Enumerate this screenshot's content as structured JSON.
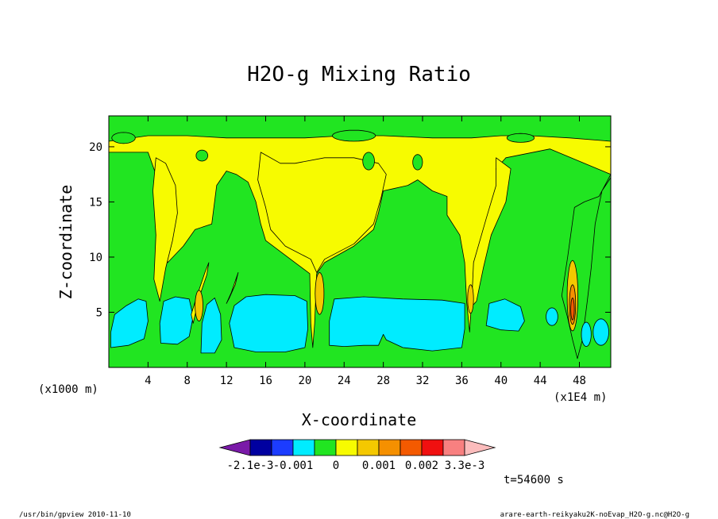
{
  "chart_data": {
    "type": "heatmap",
    "title": "H2O-g Mixing Ratio",
    "xlabel": "X-coordinate",
    "ylabel": "Z-coordinate",
    "x_unit_label": "(x1000 m)",
    "x_scale_label": "(x1E4 m)",
    "xlim": [
      0,
      51.2
    ],
    "ylim": [
      0,
      22.8
    ],
    "xticks": [
      4,
      8,
      12,
      16,
      20,
      24,
      28,
      32,
      36,
      40,
      44,
      48
    ],
    "yticks": [
      5,
      10,
      15,
      20
    ],
    "grid": false,
    "legend": "bottom",
    "levels": [
      -0.0021,
      -0.001,
      0,
      0.001,
      0.002,
      0.0033
    ],
    "colorbar_labels": [
      "-2.1e-3",
      "-0.001",
      "0",
      "0.001",
      "0.002",
      "3.3e-3"
    ],
    "colorbar_colors": [
      "#7a1aa8",
      "#0000a0",
      "#1c3cff",
      "#00ecff",
      "#21e521",
      "#f7fb00",
      "#f4c800",
      "#f59000",
      "#f45a00",
      "#f01010",
      "#f88080",
      "#fbbcbc"
    ],
    "field_colors": {
      "dry": "#00ecff",
      "moderate": "#21e521",
      "moist": "#f7fb00",
      "wet": "#f4c800",
      "peak": "#f59000",
      "max": "#f45a00"
    },
    "time_label": "t=54600 s"
  },
  "footer": {
    "left": "/usr/bin/gpview   2010-11-10",
    "right": "arare-earth-reikyaku2K-noEvap_H2O-g.nc@H2O-g"
  }
}
